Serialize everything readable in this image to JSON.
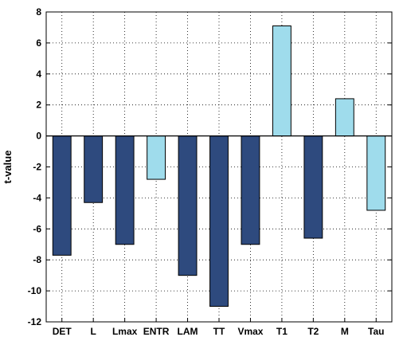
{
  "chart_data": {
    "type": "bar",
    "categories": [
      "DET",
      "L",
      "Lmax",
      "ENTR",
      "LAM",
      "TT",
      "Vmax",
      "T1",
      "T2",
      "M",
      "Tau"
    ],
    "values": [
      -7.7,
      -4.3,
      -7.0,
      -2.8,
      -9.0,
      -11.0,
      -7.0,
      7.1,
      -6.6,
      2.4,
      -4.8
    ],
    "bar_colors": [
      "#2e4a7e",
      "#2e4a7e",
      "#2e4a7e",
      "#9fdcec",
      "#2e4a7e",
      "#2e4a7e",
      "#2e4a7e",
      "#9fdcec",
      "#2e4a7e",
      "#9fdcec",
      "#9fdcec"
    ],
    "title": "",
    "xlabel": "",
    "ylabel": "t-value",
    "ylim": [
      -12,
      8
    ],
    "yticks": [
      -12,
      -10,
      -8,
      -6,
      -4,
      -2,
      0,
      2,
      4,
      6,
      8
    ],
    "grid": true
  }
}
